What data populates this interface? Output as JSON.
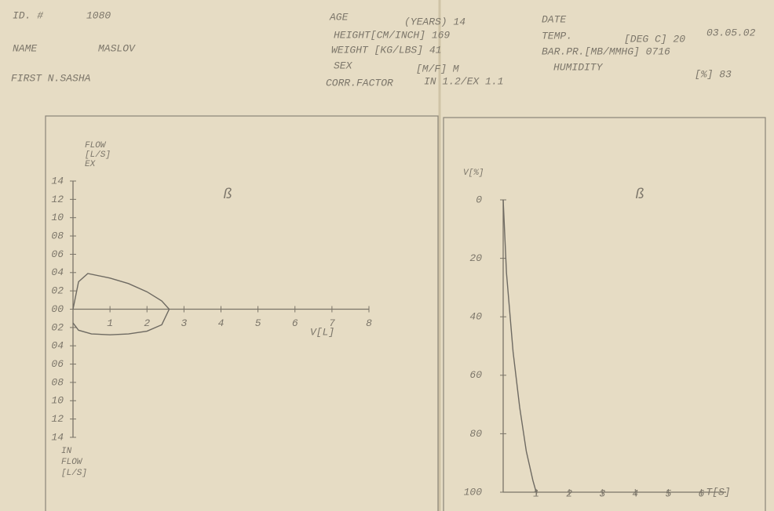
{
  "header": {
    "id_label": "ID. #",
    "id": "1080",
    "name_label": "NAME",
    "name": "MASLOV",
    "first_name": "FIRST N.SASHA",
    "age": "AGE",
    "age_value": "(YEARS) 14",
    "height": "HEIGHT[CM/INCH] 169",
    "weight": "WEIGHT [KG/LBS] 41",
    "sex": "SEX",
    "sex_value": "[M/F] M",
    "corr_factor": "CORR.FACTOR",
    "corr_value": "IN 1.2/EX 1.1",
    "date_label": "DATE",
    "date": "03.05.02",
    "temp_label": "TEMP.",
    "temp_value": "[DEG C] 20",
    "pressure": "BAR.PR.[MB/MMHG] 0716",
    "humidity_label": "HUMIDITY",
    "humidity_value": "[%] 83"
  },
  "chart_data": [
    {
      "type": "line",
      "symbol": "ß",
      "ylabel_top": [
        "FLOW",
        "[L/S]",
        "EX"
      ],
      "ylabel_bottom": [
        "IN",
        "FLOW",
        "[L/S]"
      ],
      "xlabel": "V[L]",
      "xlim": [
        0,
        8
      ],
      "xticks": [
        1,
        2,
        3,
        4,
        5,
        6,
        7,
        8
      ],
      "ylim": [
        -14,
        14
      ],
      "yticks": [
        {
          "value": 14,
          "label": "14"
        },
        {
          "value": 12,
          "label": "12"
        },
        {
          "value": 10,
          "label": "10"
        },
        {
          "value": 8,
          "label": "08"
        },
        {
          "value": 6,
          "label": "06"
        },
        {
          "value": 4,
          "label": "04"
        },
        {
          "value": 2,
          "label": "02"
        },
        {
          "value": 0,
          "label": "00"
        },
        {
          "value": -2,
          "label": "02"
        },
        {
          "value": -4,
          "label": "04"
        },
        {
          "value": -6,
          "label": "06"
        },
        {
          "value": -8,
          "label": "08"
        },
        {
          "value": -10,
          "label": "10"
        },
        {
          "value": -12,
          "label": "12"
        },
        {
          "value": -14,
          "label": "14"
        }
      ],
      "series": [
        {
          "color": "#6e6a62",
          "x": [
            0,
            0.15,
            0.4,
            1,
            1.5,
            2,
            2.4,
            2.6,
            2.4,
            2,
            1.5,
            1,
            0.5,
            0.15,
            0
          ],
          "values": [
            0,
            3,
            3.9,
            3.4,
            2.8,
            1.9,
            0.9,
            0,
            -1.7,
            -2.4,
            -2.7,
            -2.8,
            -2.7,
            -2.3,
            -1.5
          ]
        }
      ]
    },
    {
      "type": "line",
      "symbol": "ß",
      "ylabel": "V[%]",
      "xlabel": "T[S]",
      "xlim": [
        0,
        6.75
      ],
      "xticks": [
        1,
        2,
        3,
        4,
        5,
        6
      ],
      "ylim": [
        100,
        0
      ],
      "yticks": [
        0,
        20,
        40,
        60,
        80,
        100
      ],
      "series": [
        {
          "color": "#6e6a62",
          "x": [
            0,
            0.1,
            0.3,
            0.5,
            0.7,
            0.9,
            1.0
          ],
          "values": [
            0,
            25,
            52,
            71,
            86,
            96,
            100
          ]
        }
      ]
    }
  ]
}
